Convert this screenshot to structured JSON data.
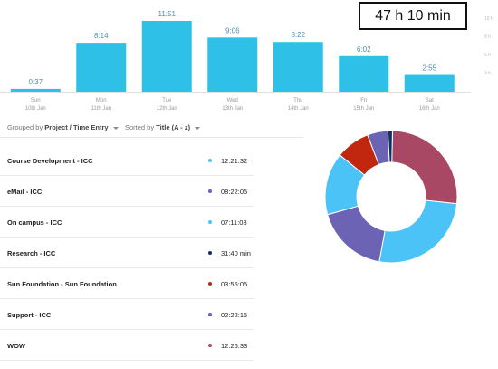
{
  "total": "47 h 10 min",
  "chart_data": {
    "type": "bar",
    "categories": [
      "Sun",
      "Mon",
      "Tue",
      "Wed",
      "Thu",
      "Fri",
      "Sat"
    ],
    "dates": [
      "10th Jan",
      "11th Jan",
      "12th Jan",
      "13th Jan",
      "14th Jan",
      "15th Jan",
      "16th Jan"
    ],
    "values": [
      0.617,
      8.233,
      11.85,
      9.1,
      8.367,
      6.033,
      2.917
    ],
    "value_labels": [
      "0:37",
      "8:14",
      "11:51",
      "9:06",
      "8:22",
      "6:02",
      "2:55"
    ],
    "ylim": [
      0,
      12
    ],
    "right_ticks": [
      "10 h",
      "8 h",
      "5 h",
      "3 h"
    ],
    "bar_color": "#2ec0e6"
  },
  "toolbar": {
    "group_prefix": "Grouped by",
    "group_value": "Project / Time Entry",
    "sort_prefix": "Sorted by",
    "sort_value": "Title (A - z)"
  },
  "entries": [
    {
      "name": "Course Development - ICC",
      "duration": "12:21:32",
      "color": "#4bc3f7"
    },
    {
      "name": "eMail - ICC",
      "duration": "08:22:05",
      "color": "#6c63b5"
    },
    {
      "name": "On campus - ICC",
      "duration": "07:11:08",
      "color": "#4bc3f7"
    },
    {
      "name": "Research - ICC",
      "duration": "31:40 min",
      "color": "#0c2f6b"
    },
    {
      "name": "Sun Foundation - Sun Foundation",
      "duration": "03:55:05",
      "color": "#c0270e"
    },
    {
      "name": "Support - ICC",
      "duration": "02:22:15",
      "color": "#6c63b5"
    },
    {
      "name": "WOW",
      "duration": "12:26:33",
      "color": "#a84864"
    }
  ],
  "donut": {
    "segments": [
      {
        "value": 12.442,
        "color": "#a84864"
      },
      {
        "value": 12.359,
        "color": "#4bc3f7"
      },
      {
        "value": 8.368,
        "color": "#6c63b5"
      },
      {
        "value": 7.186,
        "color": "#4bc3f7"
      },
      {
        "value": 3.918,
        "color": "#c0270e"
      },
      {
        "value": 2.371,
        "color": "#6c63b5"
      },
      {
        "value": 0.528,
        "color": "#0c2f6b"
      }
    ]
  }
}
